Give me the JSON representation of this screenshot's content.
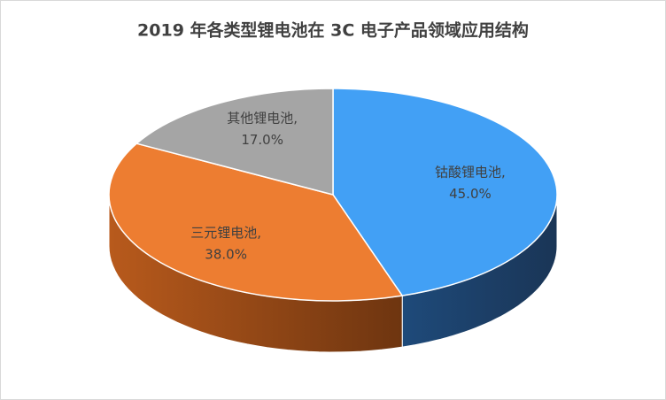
{
  "chart_data": {
    "type": "pie3d",
    "title": "2019 年各类型锂电池在 3C 电子产品领域应用结构",
    "categories": [
      "钴酸锂电池",
      "三元锂电池",
      "其他锂电池"
    ],
    "values": [
      45,
      38,
      17
    ],
    "value_labels": [
      "45.0%",
      "38.0%",
      "17.0%"
    ],
    "label_separator": ",",
    "colors": [
      "#42a0f5",
      "#ed7d31",
      "#a5a5a5"
    ],
    "side_colors": [
      "#1e3f66",
      "#8a4414",
      "#6f6f6f"
    ]
  }
}
